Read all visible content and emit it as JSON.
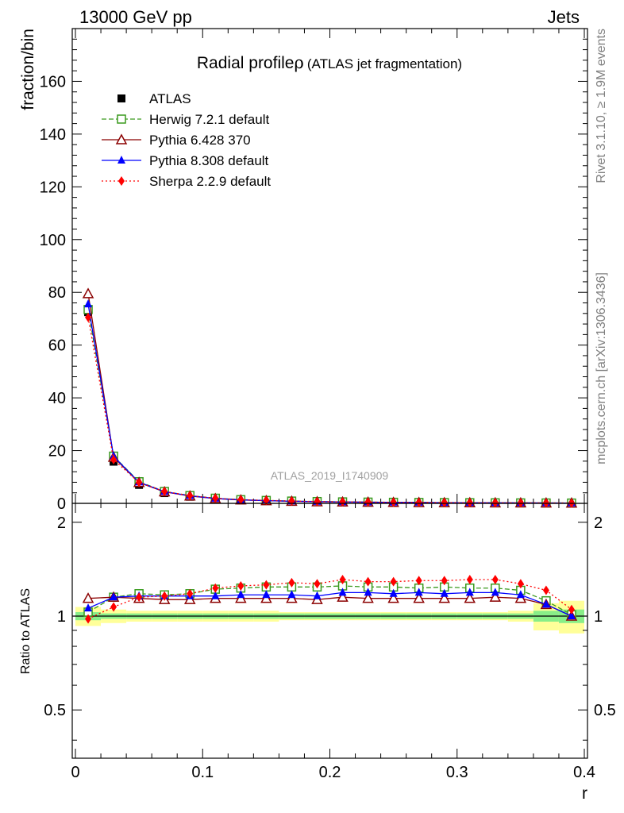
{
  "header": {
    "left": "13000 GeV pp",
    "right": "Jets"
  },
  "side_labels": {
    "rivet": "Rivet 3.1.10, ≥ 1.9M events",
    "mcplots": "mcplots.cern.ch [arXiv:1306.3436]"
  },
  "watermark": "ATLAS_2019_I1740909",
  "chart_data": [
    {
      "type": "line",
      "title": "Radial profile",
      "title_symbol": "ρ",
      "subtitle": "(ATLAS jet fragmentation)",
      "xlabel": "",
      "ylabel": "fraction/bin",
      "xlim": [
        -0.0025,
        0.4025
      ],
      "ylim": [
        0,
        180
      ],
      "ytick_values": [
        0,
        20,
        40,
        60,
        80,
        100,
        120,
        140,
        160
      ],
      "ytick_labels": [
        "0",
        "20",
        "40",
        "60",
        "80",
        "100",
        "120",
        "140",
        "160"
      ],
      "x": [
        0.01,
        0.03,
        0.05,
        0.07,
        0.09,
        0.11,
        0.13,
        0.15,
        0.17,
        0.19,
        0.21,
        0.23,
        0.25,
        0.27,
        0.29,
        0.31,
        0.33,
        0.35,
        0.37,
        0.39
      ],
      "series": [
        {
          "name": "ATLAS",
          "color": "#000000",
          "marker": "square-filled",
          "style": "none",
          "values": [
            72.5,
            15.8,
            7.0,
            3.9,
            2.5,
            1.6,
            1.15,
            0.9,
            0.7,
            0.55,
            0.45,
            0.38,
            0.32,
            0.27,
            0.23,
            0.2,
            0.17,
            0.15,
            0.13,
            0.12
          ]
        },
        {
          "name": "Herwig 7.2.1 default",
          "color": "#3a9a1e",
          "marker": "square-open",
          "style": "dashed",
          "values": [
            73.5,
            17.9,
            8.2,
            4.5,
            2.95,
            1.95,
            1.4,
            1.1,
            0.86,
            0.68,
            0.56,
            0.47,
            0.4,
            0.34,
            0.29,
            0.25,
            0.21,
            0.18,
            0.15,
            0.12
          ]
        },
        {
          "name": "Pythia 6.428 370",
          "color": "#8b0000",
          "marker": "triangle-open",
          "style": "solid",
          "values": [
            79.5,
            17.5,
            7.9,
            4.35,
            2.8,
            1.8,
            1.3,
            1.02,
            0.8,
            0.62,
            0.52,
            0.44,
            0.37,
            0.31,
            0.26,
            0.23,
            0.2,
            0.17,
            0.14,
            0.12
          ]
        },
        {
          "name": "Pythia 8.308 default",
          "color": "#0000ff",
          "marker": "triangle-filled",
          "style": "solid",
          "values": [
            75.5,
            17.8,
            8.0,
            4.45,
            2.85,
            1.85,
            1.33,
            1.04,
            0.81,
            0.63,
            0.53,
            0.45,
            0.38,
            0.32,
            0.27,
            0.23,
            0.2,
            0.17,
            0.14,
            0.12
          ]
        },
        {
          "name": "Sherpa 2.2.9 default",
          "color": "#ff0000",
          "marker": "diamond-filled",
          "style": "dotted",
          "values": [
            70.5,
            16.6,
            7.9,
            4.5,
            2.92,
            1.96,
            1.41,
            1.12,
            0.88,
            0.69,
            0.58,
            0.48,
            0.41,
            0.35,
            0.29,
            0.26,
            0.22,
            0.19,
            0.16,
            0.13
          ]
        }
      ]
    },
    {
      "type": "line",
      "xlabel": "r",
      "ylabel": "Ratio to ATLAS",
      "xlim": [
        -0.0025,
        0.4025
      ],
      "ylim": [
        0.35,
        2.3
      ],
      "y_scale": "log",
      "xtick_values": [
        0,
        0.1,
        0.2,
        0.3,
        0.4
      ],
      "xtick_labels": [
        "0",
        "0.1",
        "0.2",
        "0.3",
        "0.4"
      ],
      "ytick_values": [
        0.5,
        1,
        2
      ],
      "ytick_labels": [
        "0.5",
        "1",
        "2"
      ],
      "x": [
        0.01,
        0.03,
        0.05,
        0.07,
        0.09,
        0.11,
        0.13,
        0.15,
        0.17,
        0.19,
        0.21,
        0.23,
        0.25,
        0.27,
        0.29,
        0.31,
        0.33,
        0.35,
        0.37,
        0.39
      ],
      "bands": {
        "stat_color": "#88ee88",
        "total_color": "#ffff99",
        "stat": [
          0.03,
          0.02,
          0.02,
          0.02,
          0.02,
          0.02,
          0.02,
          0.02,
          0.02,
          0.02,
          0.02,
          0.02,
          0.02,
          0.02,
          0.02,
          0.02,
          0.02,
          0.02,
          0.04,
          0.05
        ],
        "total": [
          0.07,
          0.05,
          0.04,
          0.04,
          0.04,
          0.04,
          0.04,
          0.04,
          0.03,
          0.03,
          0.03,
          0.03,
          0.03,
          0.03,
          0.03,
          0.03,
          0.03,
          0.04,
          0.1,
          0.12
        ]
      },
      "series": [
        {
          "name": "Herwig 7.2.1 default",
          "color": "#3a9a1e",
          "marker": "square-open",
          "style": "dashed",
          "values": [
            1.03,
            1.15,
            1.18,
            1.17,
            1.18,
            1.22,
            1.23,
            1.24,
            1.24,
            1.24,
            1.25,
            1.24,
            1.24,
            1.23,
            1.24,
            1.23,
            1.23,
            1.21,
            1.12,
            1.01
          ]
        },
        {
          "name": "Pythia 6.428 370",
          "color": "#8b0000",
          "marker": "triangle-open",
          "style": "solid",
          "values": [
            1.14,
            1.15,
            1.14,
            1.13,
            1.13,
            1.14,
            1.14,
            1.14,
            1.14,
            1.13,
            1.15,
            1.14,
            1.14,
            1.14,
            1.14,
            1.14,
            1.15,
            1.14,
            1.09,
            1.0
          ]
        },
        {
          "name": "Pythia 8.308 default",
          "color": "#0000ff",
          "marker": "triangle-filled",
          "style": "solid",
          "values": [
            1.06,
            1.15,
            1.16,
            1.16,
            1.16,
            1.16,
            1.17,
            1.17,
            1.17,
            1.16,
            1.19,
            1.19,
            1.18,
            1.19,
            1.18,
            1.19,
            1.19,
            1.17,
            1.09,
            1.0
          ]
        },
        {
          "name": "Sherpa 2.2.9 default",
          "color": "#ff0000",
          "marker": "diamond-filled",
          "style": "dotted",
          "values": [
            0.98,
            1.07,
            1.15,
            1.16,
            1.18,
            1.23,
            1.25,
            1.26,
            1.28,
            1.27,
            1.31,
            1.29,
            1.29,
            1.3,
            1.3,
            1.31,
            1.31,
            1.27,
            1.21,
            1.05
          ]
        }
      ]
    }
  ]
}
